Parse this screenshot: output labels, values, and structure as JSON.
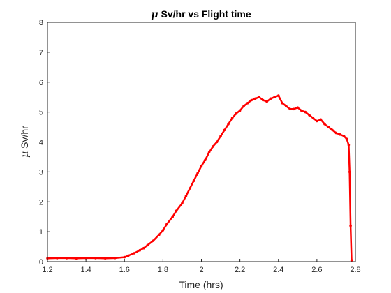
{
  "chart_data": {
    "type": "line",
    "title_symbol": "μ",
    "title_text": " Sv/hr vs Flight time",
    "xlabel": "Time (hrs)",
    "ylabel_symbol": "μ",
    "ylabel_text": " Sv/hr",
    "xlim": [
      1.2,
      2.8
    ],
    "ylim": [
      0,
      8
    ],
    "xticks": [
      "1.2",
      "1.4",
      "1.6",
      "1.8",
      "2",
      "2.2",
      "2.4",
      "2.6",
      "2.8"
    ],
    "yticks": [
      "0",
      "1",
      "2",
      "3",
      "4",
      "5",
      "6",
      "7",
      "8"
    ],
    "grid": false,
    "series_color": "#ff0000",
    "series": [
      {
        "x": [
          1.2,
          1.25,
          1.3,
          1.35,
          1.4,
          1.45,
          1.5,
          1.55,
          1.6,
          1.62,
          1.65,
          1.68,
          1.7,
          1.72,
          1.75,
          1.78,
          1.8,
          1.82,
          1.85,
          1.87,
          1.9,
          1.92,
          1.94,
          1.96,
          1.98,
          2.0,
          2.02,
          2.04,
          2.06,
          2.08,
          2.1,
          2.12,
          2.14,
          2.16,
          2.18,
          2.2,
          2.22,
          2.24,
          2.26,
          2.28,
          2.3,
          2.32,
          2.34,
          2.36,
          2.38,
          2.4,
          2.42,
          2.44,
          2.46,
          2.48,
          2.5,
          2.52,
          2.54,
          2.56,
          2.58,
          2.6,
          2.62,
          2.64,
          2.66,
          2.68,
          2.7,
          2.72,
          2.74,
          2.755,
          2.765,
          2.77,
          2.775,
          2.78
        ],
        "values": [
          0.11,
          0.12,
          0.12,
          0.11,
          0.12,
          0.12,
          0.11,
          0.12,
          0.15,
          0.2,
          0.28,
          0.38,
          0.45,
          0.55,
          0.7,
          0.9,
          1.05,
          1.25,
          1.5,
          1.7,
          1.95,
          2.2,
          2.45,
          2.7,
          2.95,
          3.2,
          3.4,
          3.65,
          3.85,
          4.0,
          4.2,
          4.4,
          4.6,
          4.8,
          4.95,
          5.05,
          5.2,
          5.3,
          5.4,
          5.45,
          5.5,
          5.4,
          5.35,
          5.45,
          5.5,
          5.55,
          5.3,
          5.2,
          5.1,
          5.1,
          5.15,
          5.05,
          5.0,
          4.9,
          4.8,
          4.7,
          4.75,
          4.6,
          4.5,
          4.4,
          4.3,
          4.25,
          4.2,
          4.1,
          3.9,
          3.0,
          1.2,
          0.05
        ]
      }
    ]
  }
}
